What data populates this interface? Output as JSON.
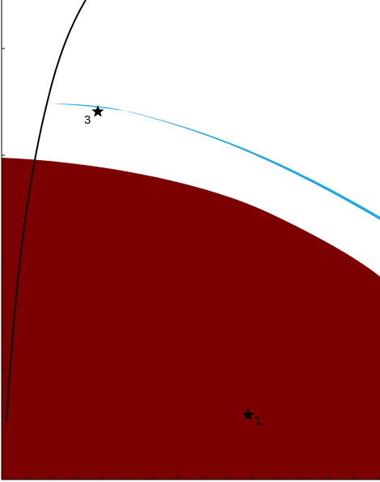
{
  "chart_data": {
    "type": "area",
    "title": "",
    "xlabel": "",
    "ylabel": "",
    "grid": false,
    "legend": "none",
    "colors": {
      "region": "#7b0000",
      "band": "#1fa8e6",
      "curve": "#000000",
      "markers": "#000000",
      "axes": "#000000"
    },
    "markers": [
      {
        "id": "marker-1",
        "label": "1",
        "shape": "star"
      },
      {
        "id": "marker-3",
        "label": "3",
        "shape": "star"
      }
    ]
  }
}
